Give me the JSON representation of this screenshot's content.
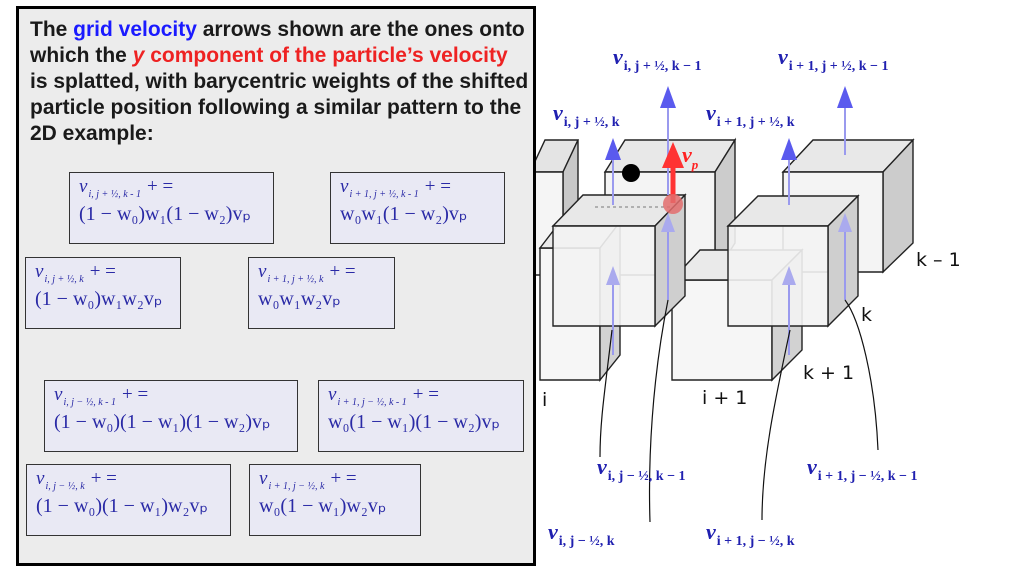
{
  "intro": {
    "t1": "The ",
    "grid_velocity": "grid velocity",
    "t2": " arrows shown are the ones onto which the ",
    "y": "y",
    "y_component": " component of the particle’s velocity",
    "t3": " is splatted, with barycentric weights of the shifted particle position following a similar pattern to the 2D example:"
  },
  "formulas": [
    {
      "v": "v",
      "sub": "i, j + ½, k - 1",
      "op": "+ =",
      "rhs": "(1 − w₀)w₁(1 − w₂)vₚ"
    },
    {
      "v": "v",
      "sub": "i + 1, j + ½, k - 1",
      "op": "+ =",
      "rhs": "w₀w₁(1 − w₂)vₚ"
    },
    {
      "v": "v",
      "sub": "i, j + ½, k",
      "op": "+ =",
      "rhs": "(1 − w₀)w₁w₂vₚ"
    },
    {
      "v": "v",
      "sub": "i + 1, j + ½, k",
      "op": "+ =",
      "rhs": "w₀w₁w₂vₚ"
    },
    {
      "v": "v",
      "sub": "i, j − ½, k - 1",
      "op": "+ =",
      "rhs": "(1 − w₀)(1 − w₁)(1 − w₂)vₚ"
    },
    {
      "v": "v",
      "sub": "i + 1, j − ½, k - 1",
      "op": "+ =",
      "rhs": "w₀(1 − w₁)(1 − w₂)vₚ"
    },
    {
      "v": "v",
      "sub": "i, j − ½, k",
      "op": "+ =",
      "rhs": "(1 − w₀)(1 − w₁)w₂vₚ"
    },
    {
      "v": "v",
      "sub": "i + 1, j − ½, k",
      "op": "+ =",
      "rhs": "w₀(1 − w₁)w₂vₚ"
    }
  ],
  "velocity_labels": [
    {
      "v": "v",
      "sub": "i, j + ½, k − 1"
    },
    {
      "v": "v",
      "sub": "i + 1, j + ½, k − 1"
    },
    {
      "v": "v",
      "sub": "i, j + ½, k"
    },
    {
      "v": "v",
      "sub": "i + 1, j + ½, k"
    },
    {
      "v": "v",
      "sub": "i, j − ½, k − 1"
    },
    {
      "v": "v",
      "sub": "i + 1, j − ½, k − 1"
    },
    {
      "v": "v",
      "sub": "i, j − ½, k"
    },
    {
      "v": "v",
      "sub": "i + 1, j − ½, k"
    }
  ],
  "particle_label": {
    "v": "v",
    "sub": "p"
  },
  "grid_labels": {
    "k_minus_1": "k – 1",
    "k": "k",
    "k_plus_1": "k + 1",
    "i_plus_1": "i + 1",
    "i": "i"
  },
  "colors": {
    "grid_arrow": "#9999ee",
    "grid_arrow_head": "#5555ee",
    "particle_arrow": "#ff3333",
    "particle_dot": "#e06060",
    "text_blue": "#1a1aff",
    "text_red": "#ee2222"
  }
}
